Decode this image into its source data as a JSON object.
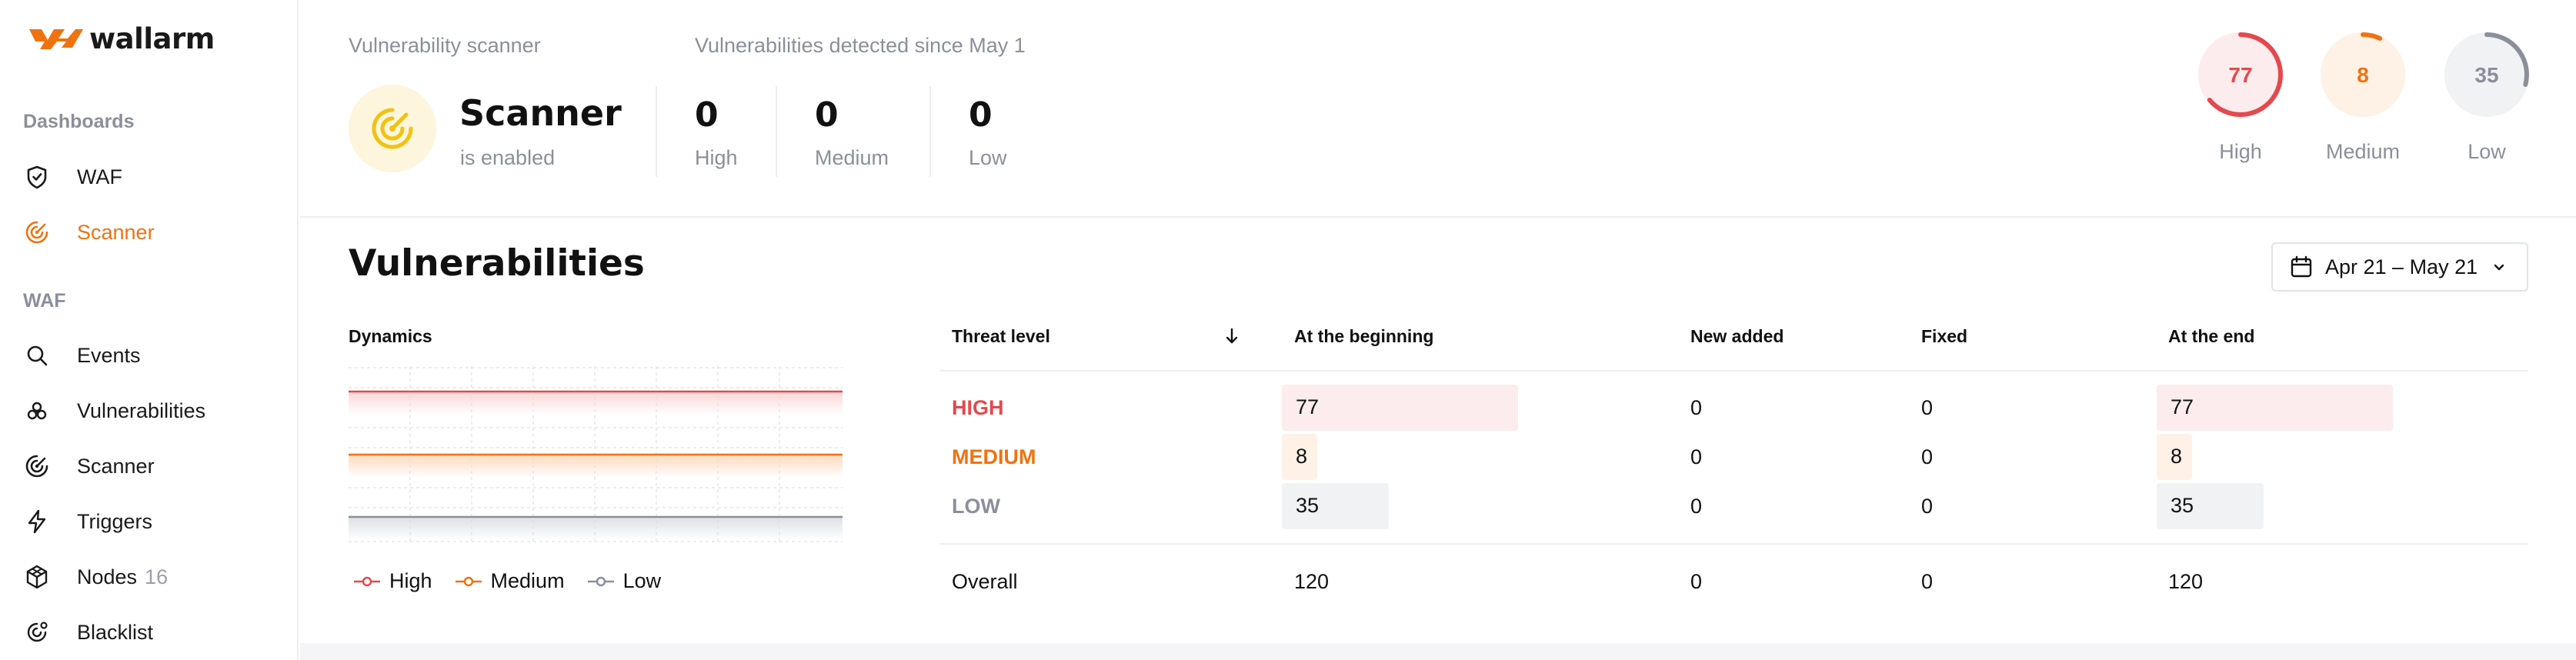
{
  "brand": {
    "name": "wallarm"
  },
  "sidebar": {
    "sections": [
      {
        "title": "Dashboards",
        "items": [
          {
            "label": "WAF",
            "icon": "shield-icon",
            "active": false
          },
          {
            "label": "Scanner",
            "icon": "scanner-icon",
            "active": true
          }
        ]
      },
      {
        "title": "WAF",
        "items": [
          {
            "label": "Events",
            "icon": "search-icon"
          },
          {
            "label": "Vulnerabilities",
            "icon": "biohazard-icon"
          },
          {
            "label": "Scanner",
            "icon": "scanner-icon"
          },
          {
            "label": "Triggers",
            "icon": "lightning-icon"
          },
          {
            "label": "Nodes",
            "icon": "nodes-icon",
            "count": "16"
          },
          {
            "label": "Blacklist",
            "icon": "blacklist-icon"
          }
        ]
      }
    ]
  },
  "header": {
    "scanner_label": "Vulnerability scanner",
    "detected_label": "Vulnerabilities detected since May 1",
    "scanner_title": "Scanner",
    "scanner_status": "is enabled",
    "stats": [
      {
        "value": "0",
        "label": "High"
      },
      {
        "value": "0",
        "label": "Medium"
      },
      {
        "value": "0",
        "label": "Low"
      }
    ],
    "gauges": [
      {
        "value": "77",
        "label": "High",
        "fraction": 0.64,
        "color": "#e5484d",
        "bg": "#fdeced"
      },
      {
        "value": "8",
        "label": "Medium",
        "fraction": 0.07,
        "color": "#f0720f",
        "bg": "#fef1e6"
      },
      {
        "value": "35",
        "label": "Low",
        "fraction": 0.29,
        "color": "#8a8f9a",
        "bg": "#f1f2f4"
      }
    ]
  },
  "main": {
    "title": "Vulnerabilities",
    "date_range": "Apr 21 – May 21",
    "dynamics_title": "Dynamics",
    "legend": [
      {
        "label": "High",
        "color": "#e5484d"
      },
      {
        "label": "Medium",
        "color": "#f0720f"
      },
      {
        "label": "Low",
        "color": "#8a8f9a"
      }
    ],
    "table": {
      "headers": [
        "Threat level",
        "At the beginning",
        "New added",
        "Fixed",
        "At the end"
      ],
      "rows": [
        {
          "level": "HIGH",
          "color": "#e5484d",
          "bar_color": "#fdeced",
          "beginning": "77",
          "new": "0",
          "fixed": "0",
          "end": "77",
          "share": 0.64
        },
        {
          "level": "MEDIUM",
          "color": "#f0720f",
          "bar_color": "#fef1e6",
          "beginning": "8",
          "new": "0",
          "fixed": "0",
          "end": "8",
          "share": 0.07
        },
        {
          "level": "LOW",
          "color": "#8a8f9a",
          "bar_color": "#f1f2f4",
          "beginning": "35",
          "new": "0",
          "fixed": "0",
          "end": "35",
          "share": 0.29
        }
      ],
      "overall": {
        "label": "Overall",
        "beginning": "120",
        "new": "0",
        "fixed": "0",
        "end": "120"
      }
    }
  }
}
